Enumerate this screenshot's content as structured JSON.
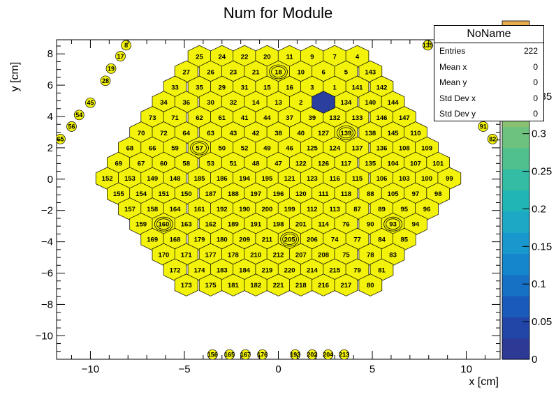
{
  "chart_data": {
    "type": "heatmap",
    "title": "Num for Module",
    "xlabel": "x [cm]",
    "ylabel": "y [cm]",
    "xlim": [
      -11.8,
      11.8
    ],
    "ylim": [
      -11.5,
      8.9
    ],
    "xticks": [
      -10,
      -5,
      0,
      5,
      10
    ],
    "yticks": [
      -10,
      -8,
      -6,
      -4,
      -2,
      0,
      2,
      4,
      6,
      8
    ],
    "zlim": [
      0,
      0.45
    ],
    "zticks": [
      0,
      0.05,
      0.1,
      0.15,
      0.2,
      0.25,
      0.3,
      0.35
    ],
    "hex_pitch": 1.22,
    "cell_value_default": 0,
    "filled_cell": {
      "x": 2.4,
      "y": 4.91,
      "value": 0.45
    },
    "cell_fill_color": "#f2f20a",
    "filled_color": "#2b3f9e",
    "palette": [
      "#2c3a96",
      "#2246a8",
      "#1a5ab8",
      "#1670c4",
      "#1585cc",
      "#1898cc",
      "#1da9c6",
      "#22b5b6",
      "#34bca4",
      "#50c08f",
      "#6ec27f",
      "#8ac072",
      "#a6bd6a",
      "#bfb862",
      "#d5b35a",
      "#e7ad51"
    ],
    "modules": [
      {
        "n": "25",
        "x": -4.2,
        "y": 7.83
      },
      {
        "n": "24",
        "x": -3.0,
        "y": 7.83
      },
      {
        "n": "22",
        "x": -1.8,
        "y": 7.83
      },
      {
        "n": "20",
        "x": -0.6,
        "y": 7.83
      },
      {
        "n": "11",
        "x": 0.6,
        "y": 7.83
      },
      {
        "n": "9",
        "x": 1.8,
        "y": 7.83
      },
      {
        "n": "7",
        "x": 3.0,
        "y": 7.83
      },
      {
        "n": "4",
        "x": 4.2,
        "y": 7.83
      },
      {
        "n": "27",
        "x": -4.9,
        "y": 6.85
      },
      {
        "n": "26",
        "x": -3.6,
        "y": 6.85
      },
      {
        "n": "23",
        "x": -2.4,
        "y": 6.85
      },
      {
        "n": "21",
        "x": -1.2,
        "y": 6.85
      },
      {
        "n": "18",
        "x": 0.0,
        "y": 6.85
      },
      {
        "n": "10",
        "x": 1.2,
        "y": 6.85
      },
      {
        "n": "6",
        "x": 2.4,
        "y": 6.85
      },
      {
        "n": "5",
        "x": 3.6,
        "y": 6.85
      },
      {
        "n": "143",
        "x": 4.9,
        "y": 6.85
      },
      {
        "n": "33",
        "x": -5.5,
        "y": 5.88
      },
      {
        "n": "35",
        "x": -4.2,
        "y": 5.88
      },
      {
        "n": "29",
        "x": -3.0,
        "y": 5.88
      },
      {
        "n": "31",
        "x": -1.8,
        "y": 5.88
      },
      {
        "n": "15",
        "x": -0.6,
        "y": 5.88
      },
      {
        "n": "16",
        "x": 0.6,
        "y": 5.88
      },
      {
        "n": "3",
        "x": 1.8,
        "y": 5.88
      },
      {
        "n": "1",
        "x": 3.0,
        "y": 5.88
      },
      {
        "n": "141",
        "x": 4.2,
        "y": 5.88
      },
      {
        "n": "142",
        "x": 5.5,
        "y": 5.88
      },
      {
        "n": "34",
        "x": -6.1,
        "y": 4.91
      },
      {
        "n": "36",
        "x": -4.9,
        "y": 4.91
      },
      {
        "n": "30",
        "x": -3.6,
        "y": 4.91
      },
      {
        "n": "32",
        "x": -2.4,
        "y": 4.91
      },
      {
        "n": "14",
        "x": -1.2,
        "y": 4.91
      },
      {
        "n": "13",
        "x": 0.0,
        "y": 4.91
      },
      {
        "n": "2",
        "x": 1.2,
        "y": 4.91
      },
      {
        "n": "134",
        "x": 3.6,
        "y": 4.91
      },
      {
        "n": "140",
        "x": 4.9,
        "y": 4.91
      },
      {
        "n": "144",
        "x": 6.1,
        "y": 4.91
      },
      {
        "n": "73",
        "x": -6.7,
        "y": 3.94
      },
      {
        "n": "71",
        "x": -5.5,
        "y": 3.94
      },
      {
        "n": "62",
        "x": -4.2,
        "y": 3.94
      },
      {
        "n": "61",
        "x": -3.0,
        "y": 3.94
      },
      {
        "n": "41",
        "x": -1.8,
        "y": 3.94
      },
      {
        "n": "44",
        "x": -0.6,
        "y": 3.94
      },
      {
        "n": "37",
        "x": 0.6,
        "y": 3.94
      },
      {
        "n": "39",
        "x": 1.8,
        "y": 3.94
      },
      {
        "n": "132",
        "x": 3.0,
        "y": 3.94
      },
      {
        "n": "133",
        "x": 4.2,
        "y": 3.94
      },
      {
        "n": "146",
        "x": 5.5,
        "y": 3.94
      },
      {
        "n": "147",
        "x": 6.7,
        "y": 3.94
      },
      {
        "n": "70",
        "x": -7.3,
        "y": 2.96
      },
      {
        "n": "72",
        "x": -6.1,
        "y": 2.96
      },
      {
        "n": "64",
        "x": -4.9,
        "y": 2.96
      },
      {
        "n": "63",
        "x": -3.6,
        "y": 2.96
      },
      {
        "n": "43",
        "x": -2.4,
        "y": 2.96
      },
      {
        "n": "42",
        "x": -1.2,
        "y": 2.96
      },
      {
        "n": "38",
        "x": 0.0,
        "y": 2.96
      },
      {
        "n": "40",
        "x": 1.2,
        "y": 2.96
      },
      {
        "n": "127",
        "x": 2.4,
        "y": 2.96
      },
      {
        "n": "139",
        "x": 3.6,
        "y": 2.96
      },
      {
        "n": "138",
        "x": 4.9,
        "y": 2.96
      },
      {
        "n": "145",
        "x": 6.1,
        "y": 2.96
      },
      {
        "n": "110",
        "x": 7.3,
        "y": 2.96
      },
      {
        "n": "68",
        "x": -7.9,
        "y": 1.99
      },
      {
        "n": "66",
        "x": -6.7,
        "y": 1.99
      },
      {
        "n": "59",
        "x": -5.5,
        "y": 1.99
      },
      {
        "n": "57",
        "x": -4.2,
        "y": 1.99
      },
      {
        "n": "50",
        "x": -3.0,
        "y": 1.99
      },
      {
        "n": "52",
        "x": -1.8,
        "y": 1.99
      },
      {
        "n": "49",
        "x": -0.6,
        "y": 1.99
      },
      {
        "n": "46",
        "x": 0.6,
        "y": 1.99
      },
      {
        "n": "125",
        "x": 1.8,
        "y": 1.99
      },
      {
        "n": "124",
        "x": 3.0,
        "y": 1.99
      },
      {
        "n": "137",
        "x": 4.2,
        "y": 1.99
      },
      {
        "n": "136",
        "x": 5.5,
        "y": 1.99
      },
      {
        "n": "108",
        "x": 6.7,
        "y": 1.99
      },
      {
        "n": "109",
        "x": 7.9,
        "y": 1.99
      },
      {
        "n": "69",
        "x": -8.5,
        "y": 1.02
      },
      {
        "n": "67",
        "x": -7.3,
        "y": 1.02
      },
      {
        "n": "60",
        "x": -6.1,
        "y": 1.02
      },
      {
        "n": "58",
        "x": -4.9,
        "y": 1.02
      },
      {
        "n": "53",
        "x": -3.6,
        "y": 1.02
      },
      {
        "n": "51",
        "x": -2.4,
        "y": 1.02
      },
      {
        "n": "48",
        "x": -1.2,
        "y": 1.02
      },
      {
        "n": "47",
        "x": 0.0,
        "y": 1.02
      },
      {
        "n": "122",
        "x": 1.2,
        "y": 1.02
      },
      {
        "n": "126",
        "x": 2.4,
        "y": 1.02
      },
      {
        "n": "117",
        "x": 3.6,
        "y": 1.02
      },
      {
        "n": "135",
        "x": 4.9,
        "y": 1.02
      },
      {
        "n": "104",
        "x": 6.1,
        "y": 1.02
      },
      {
        "n": "107",
        "x": 7.3,
        "y": 1.02
      },
      {
        "n": "101",
        "x": 8.5,
        "y": 1.02
      },
      {
        "n": "152",
        "x": -9.1,
        "y": 0.05
      },
      {
        "n": "153",
        "x": -7.9,
        "y": 0.05
      },
      {
        "n": "149",
        "x": -6.7,
        "y": 0.05
      },
      {
        "n": "148",
        "x": -5.5,
        "y": 0.05
      },
      {
        "n": "185",
        "x": -4.2,
        "y": 0.05
      },
      {
        "n": "186",
        "x": -3.0,
        "y": 0.05
      },
      {
        "n": "194",
        "x": -1.8,
        "y": 0.05
      },
      {
        "n": "195",
        "x": -0.6,
        "y": 0.05
      },
      {
        "n": "121",
        "x": 0.6,
        "y": 0.05
      },
      {
        "n": "123",
        "x": 1.8,
        "y": 0.05
      },
      {
        "n": "116",
        "x": 3.0,
        "y": 0.05
      },
      {
        "n": "115",
        "x": 4.2,
        "y": 0.05
      },
      {
        "n": "106",
        "x": 5.5,
        "y": 0.05
      },
      {
        "n": "103",
        "x": 6.7,
        "y": 0.05
      },
      {
        "n": "100",
        "x": 7.9,
        "y": 0.05
      },
      {
        "n": "99",
        "x": 9.1,
        "y": 0.05
      },
      {
        "n": "155",
        "x": -8.5,
        "y": -0.93
      },
      {
        "n": "154",
        "x": -7.3,
        "y": -0.93
      },
      {
        "n": "151",
        "x": -6.1,
        "y": -0.93
      },
      {
        "n": "150",
        "x": -4.9,
        "y": -0.93
      },
      {
        "n": "187",
        "x": -3.6,
        "y": -0.93
      },
      {
        "n": "188",
        "x": -2.4,
        "y": -0.93
      },
      {
        "n": "197",
        "x": -1.2,
        "y": -0.93
      },
      {
        "n": "196",
        "x": 0.0,
        "y": -0.93
      },
      {
        "n": "120",
        "x": 1.2,
        "y": -0.93
      },
      {
        "n": "111",
        "x": 2.4,
        "y": -0.93
      },
      {
        "n": "118",
        "x": 3.6,
        "y": -0.93
      },
      {
        "n": "88",
        "x": 4.9,
        "y": -0.93
      },
      {
        "n": "105",
        "x": 6.1,
        "y": -0.93
      },
      {
        "n": "97",
        "x": 7.3,
        "y": -0.93
      },
      {
        "n": "98",
        "x": 8.5,
        "y": -0.93
      },
      {
        "n": "157",
        "x": -7.9,
        "y": -1.9
      },
      {
        "n": "158",
        "x": -6.7,
        "y": -1.9
      },
      {
        "n": "164",
        "x": -5.5,
        "y": -1.9
      },
      {
        "n": "161",
        "x": -4.2,
        "y": -1.9
      },
      {
        "n": "192",
        "x": -3.0,
        "y": -1.9
      },
      {
        "n": "190",
        "x": -1.8,
        "y": -1.9
      },
      {
        "n": "200",
        "x": -0.6,
        "y": -1.9
      },
      {
        "n": "199",
        "x": 0.6,
        "y": -1.9
      },
      {
        "n": "112",
        "x": 1.8,
        "y": -1.9
      },
      {
        "n": "113",
        "x": 3.0,
        "y": -1.9
      },
      {
        "n": "87",
        "x": 4.2,
        "y": -1.9
      },
      {
        "n": "89",
        "x": 5.5,
        "y": -1.9
      },
      {
        "n": "95",
        "x": 6.7,
        "y": -1.9
      },
      {
        "n": "96",
        "x": 7.9,
        "y": -1.9
      },
      {
        "n": "159",
        "x": -7.3,
        "y": -2.87
      },
      {
        "n": "160",
        "x": -6.1,
        "y": -2.87
      },
      {
        "n": "163",
        "x": -4.9,
        "y": -2.87
      },
      {
        "n": "162",
        "x": -3.6,
        "y": -2.87
      },
      {
        "n": "189",
        "x": -2.4,
        "y": -2.87
      },
      {
        "n": "191",
        "x": -1.2,
        "y": -2.87
      },
      {
        "n": "198",
        "x": 0.0,
        "y": -2.87
      },
      {
        "n": "201",
        "x": 1.2,
        "y": -2.87
      },
      {
        "n": "114",
        "x": 2.4,
        "y": -2.87
      },
      {
        "n": "76",
        "x": 3.6,
        "y": -2.87
      },
      {
        "n": "90",
        "x": 4.9,
        "y": -2.87
      },
      {
        "n": "93",
        "x": 6.1,
        "y": -2.87
      },
      {
        "n": "94",
        "x": 7.3,
        "y": -2.87
      },
      {
        "n": "169",
        "x": -6.7,
        "y": -3.84
      },
      {
        "n": "168",
        "x": -5.5,
        "y": -3.84
      },
      {
        "n": "179",
        "x": -4.2,
        "y": -3.84
      },
      {
        "n": "180",
        "x": -3.0,
        "y": -3.84
      },
      {
        "n": "209",
        "x": -1.8,
        "y": -3.84
      },
      {
        "n": "211",
        "x": -0.6,
        "y": -3.84
      },
      {
        "n": "205",
        "x": 0.6,
        "y": -3.84
      },
      {
        "n": "206",
        "x": 1.8,
        "y": -3.84
      },
      {
        "n": "74",
        "x": 3.0,
        "y": -3.84
      },
      {
        "n": "77",
        "x": 4.2,
        "y": -3.84
      },
      {
        "n": "84",
        "x": 5.5,
        "y": -3.84
      },
      {
        "n": "85",
        "x": 6.7,
        "y": -3.84
      },
      {
        "n": "170",
        "x": -6.1,
        "y": -4.81
      },
      {
        "n": "171",
        "x": -4.9,
        "y": -4.81
      },
      {
        "n": "177",
        "x": -3.6,
        "y": -4.81
      },
      {
        "n": "178",
        "x": -2.4,
        "y": -4.81
      },
      {
        "n": "210",
        "x": -1.2,
        "y": -4.81
      },
      {
        "n": "212",
        "x": 0.0,
        "y": -4.81
      },
      {
        "n": "207",
        "x": 1.2,
        "y": -4.81
      },
      {
        "n": "208",
        "x": 2.4,
        "y": -4.81
      },
      {
        "n": "75",
        "x": 3.6,
        "y": -4.81
      },
      {
        "n": "78",
        "x": 4.9,
        "y": -4.81
      },
      {
        "n": "83",
        "x": 6.1,
        "y": -4.81
      },
      {
        "n": "172",
        "x": -5.5,
        "y": -5.79
      },
      {
        "n": "174",
        "x": -4.2,
        "y": -5.79
      },
      {
        "n": "183",
        "x": -3.0,
        "y": -5.79
      },
      {
        "n": "184",
        "x": -1.8,
        "y": -5.79
      },
      {
        "n": "219",
        "x": -0.6,
        "y": -5.79
      },
      {
        "n": "220",
        "x": 0.6,
        "y": -5.79
      },
      {
        "n": "214",
        "x": 1.8,
        "y": -5.79
      },
      {
        "n": "215",
        "x": 3.0,
        "y": -5.79
      },
      {
        "n": "79",
        "x": 4.2,
        "y": -5.79
      },
      {
        "n": "81",
        "x": 5.5,
        "y": -5.79
      },
      {
        "n": "173",
        "x": -4.9,
        "y": -6.76
      },
      {
        "n": "175",
        "x": -3.6,
        "y": -6.76
      },
      {
        "n": "181",
        "x": -2.4,
        "y": -6.76
      },
      {
        "n": "182",
        "x": -1.2,
        "y": -6.76
      },
      {
        "n": "221",
        "x": 0.0,
        "y": -6.76
      },
      {
        "n": "218",
        "x": 1.2,
        "y": -6.76
      },
      {
        "n": "216",
        "x": 2.4,
        "y": -6.76
      },
      {
        "n": "217",
        "x": 3.6,
        "y": -6.76
      },
      {
        "n": "80",
        "x": 4.9,
        "y": -6.76
      }
    ],
    "rings": [
      {
        "x": 0.0,
        "y": 6.85
      },
      {
        "x": -4.2,
        "y": 1.99
      },
      {
        "x": 3.6,
        "y": 2.96
      },
      {
        "x": -6.1,
        "y": -2.87
      },
      {
        "x": 6.1,
        "y": -2.87
      },
      {
        "x": 0.6,
        "y": -3.84
      }
    ],
    "outer_modules": [
      {
        "n": "8",
        "x": -8.1,
        "y": 8.55
      },
      {
        "n": "17",
        "x": -8.4,
        "y": 7.85
      },
      {
        "n": "19",
        "x": -8.9,
        "y": 7.06
      },
      {
        "n": "28",
        "x": -9.2,
        "y": 6.28
      },
      {
        "n": "45",
        "x": -10.0,
        "y": 4.88
      },
      {
        "n": "54",
        "x": -10.6,
        "y": 4.1
      },
      {
        "n": "56",
        "x": -11.0,
        "y": 3.36
      },
      {
        "n": "65",
        "x": -11.6,
        "y": 2.56
      },
      {
        "n": "91",
        "x": 10.9,
        "y": 3.36
      },
      {
        "n": "82",
        "x": 11.4,
        "y": 2.56
      },
      {
        "n": "135",
        "x": 7.95,
        "y": 8.55
      },
      {
        "n": "156",
        "x": -3.5,
        "y": -11.2
      },
      {
        "n": "165",
        "x": -2.6,
        "y": -11.2
      },
      {
        "n": "167",
        "x": -1.75,
        "y": -11.2
      },
      {
        "n": "176",
        "x": -0.85,
        "y": -11.2
      },
      {
        "n": "193",
        "x": 0.9,
        "y": -11.2
      },
      {
        "n": "202",
        "x": 1.8,
        "y": -11.2
      },
      {
        "n": "204",
        "x": 2.65,
        "y": -11.2
      },
      {
        "n": "213",
        "x": 3.5,
        "y": -11.2
      }
    ]
  },
  "stats": {
    "title": "NoName",
    "rows": [
      {
        "label": "Entries",
        "value": "222"
      },
      {
        "label": "Mean x",
        "value": "0"
      },
      {
        "label": "Mean y",
        "value": "0"
      },
      {
        "label": "Std Dev x",
        "value": "0"
      },
      {
        "label": "Std Dev y",
        "value": "0"
      }
    ]
  },
  "axis_text": {
    "xlabel": "x [cm]",
    "ylabel": "y [cm]"
  }
}
